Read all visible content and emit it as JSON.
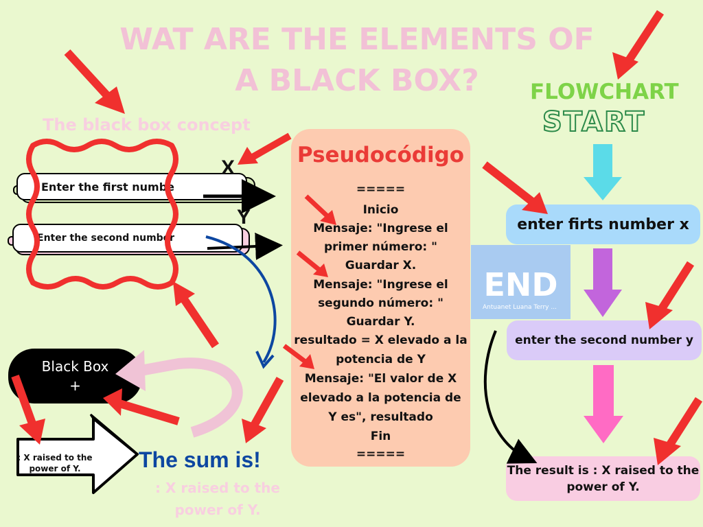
{
  "title": "WAT ARE THE ELEMENTS OF A BLACK BOX?",
  "black_box_concept": {
    "heading": "The black box concept",
    "input1": "Enter the first numbe",
    "input2": "Enter the second number",
    "label_x": "X",
    "label_y": "Y"
  },
  "black_box": {
    "line1": "Black Box",
    "line2": "+"
  },
  "output_arrow_text": ": X raised to the power of Y.",
  "sum": {
    "label": "The sum is!",
    "sub": ": X raised to the power of Y."
  },
  "pseudocode": {
    "title": "Pseudocódigo",
    "lines": [
      "=====",
      "Inicio",
      "Mensaje: \"Ingrese el",
      "primer número: \"",
      "Guardar X.",
      "Mensaje: \"Ingrese el",
      "segundo número: \"",
      "Guardar Y.",
      "resultado = X elevado a la",
      "potencia de Y",
      "Mensaje: \"El valor de X",
      "elevado a la potencia de",
      "Y es\", resultado",
      "Fin",
      "====="
    ]
  },
  "end_card": {
    "text": "END",
    "author": "Antuanet Luana Terry ..."
  },
  "flowchart": {
    "heading": "FLOWCHART",
    "start": "START",
    "step1": "enter firts number x",
    "step2": "enter the second number y",
    "step3": "The result is : X raised to the power of Y."
  },
  "colors": {
    "background": "#eaf8cf",
    "title_pink": "#f2c1d6",
    "red_arrow": "#f0302e",
    "pseudo_box": "#fdcbb0",
    "flow_step1": "#a9dafb",
    "flow_step2": "#dacbf8",
    "flow_step3": "#f9cde2"
  }
}
